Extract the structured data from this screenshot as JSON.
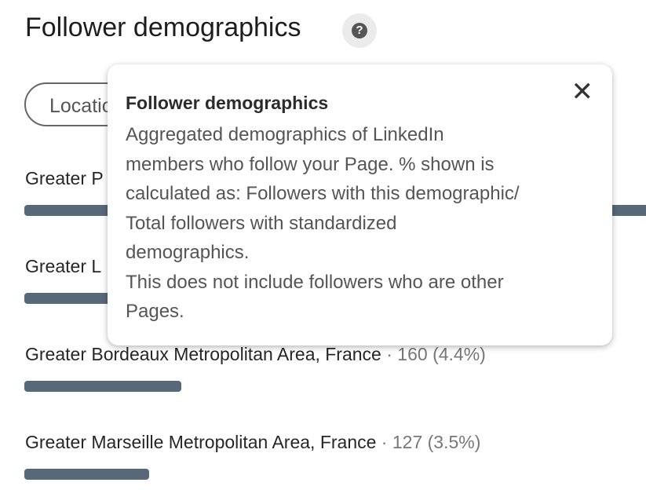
{
  "header": {
    "title": "Follower demographics",
    "help_icon": "question-circle-icon"
  },
  "filter": {
    "label": "Location"
  },
  "colors": {
    "bar": "#56687a"
  },
  "rows": [
    {
      "label": "Greater P",
      "meta": "",
      "fraction": 1.0
    },
    {
      "label": "Greater L",
      "meta": "",
      "fraction": 1.0
    },
    {
      "label": "Greater Bordeaux Metropolitan Area, France",
      "meta": " · 160 (4.4%)",
      "percent": 4.4
    },
    {
      "label": "Greater Marseille Metropolitan Area, France",
      "meta": " · 127 (3.5%)",
      "percent": 3.5
    }
  ],
  "tooltip": {
    "title": "Follower demographics",
    "lines": [
      "Aggregated demographics of LinkedIn",
      "members who follow your Page. % shown is",
      "calculated as: Followers with this demographic/",
      "Total followers with standardized",
      "demographics.",
      "This does not include followers who are other",
      "Pages."
    ],
    "close_icon": "close-icon"
  }
}
